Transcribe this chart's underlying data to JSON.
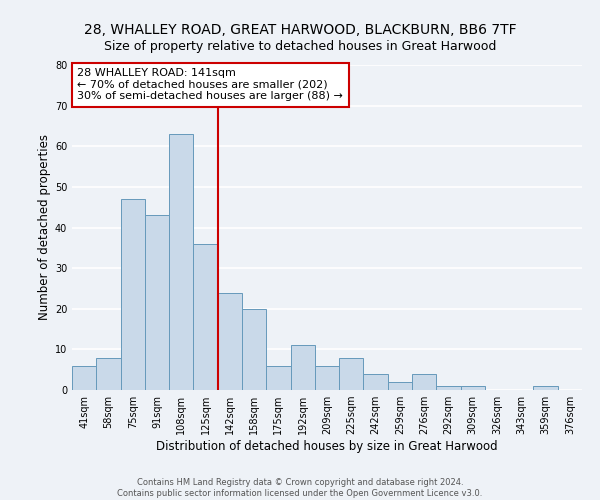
{
  "title": "28, WHALLEY ROAD, GREAT HARWOOD, BLACKBURN, BB6 7TF",
  "subtitle": "Size of property relative to detached houses in Great Harwood",
  "xlabel": "Distribution of detached houses by size in Great Harwood",
  "ylabel": "Number of detached properties",
  "bin_labels": [
    "41sqm",
    "58sqm",
    "75sqm",
    "91sqm",
    "108sqm",
    "125sqm",
    "142sqm",
    "158sqm",
    "175sqm",
    "192sqm",
    "209sqm",
    "225sqm",
    "242sqm",
    "259sqm",
    "276sqm",
    "292sqm",
    "309sqm",
    "326sqm",
    "343sqm",
    "359sqm",
    "376sqm"
  ],
  "bar_heights": [
    6,
    8,
    47,
    43,
    63,
    36,
    24,
    20,
    6,
    11,
    6,
    8,
    4,
    2,
    4,
    1,
    1,
    0,
    0,
    1,
    0
  ],
  "bar_color": "#c9d9e9",
  "bar_edge_color": "#6699bb",
  "ylim": [
    0,
    80
  ],
  "yticks": [
    0,
    10,
    20,
    30,
    40,
    50,
    60,
    70,
    80
  ],
  "vline_color": "#cc0000",
  "annotation_title": "28 WHALLEY ROAD: 141sqm",
  "annotation_line1": "← 70% of detached houses are smaller (202)",
  "annotation_line2": "30% of semi-detached houses are larger (88) →",
  "box_color": "#cc0000",
  "footer_line1": "Contains HM Land Registry data © Crown copyright and database right 2024.",
  "footer_line2": "Contains public sector information licensed under the Open Government Licence v3.0.",
  "background_color": "#eef2f7",
  "plot_background": "#eef2f7",
  "grid_color": "#ffffff",
  "title_fontsize": 10,
  "subtitle_fontsize": 9,
  "axis_label_fontsize": 8.5,
  "tick_fontsize": 7,
  "annotation_fontsize": 8,
  "footer_fontsize": 6
}
